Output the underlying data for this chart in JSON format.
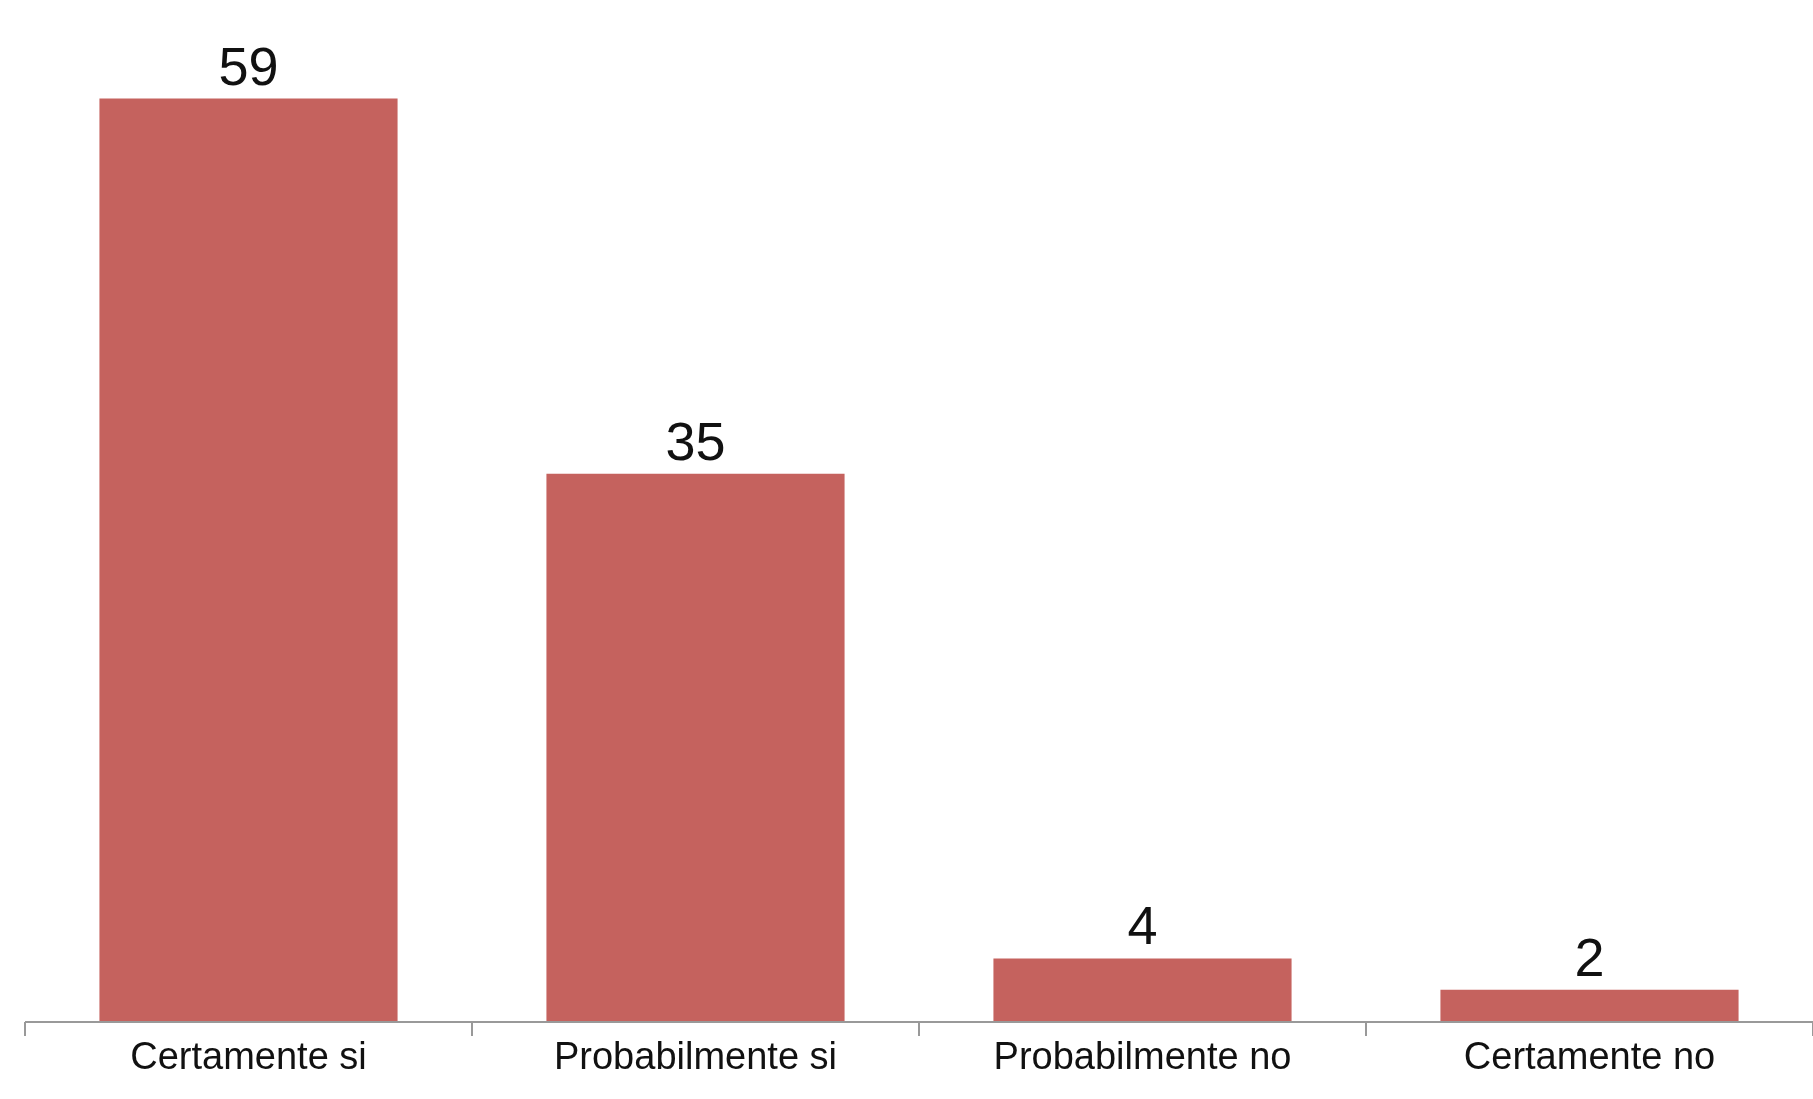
{
  "chart_data": {
    "type": "bar",
    "categories": [
      "Certamente si",
      "Probabilmente si",
      "Probabilmente no",
      "Certamente no"
    ],
    "values": [
      59,
      35,
      4,
      2
    ],
    "color": "#c5625e",
    "ylim": [
      0,
      65.3
    ],
    "data_labels": true,
    "grid": false,
    "legend": false,
    "tick_labels": "x"
  }
}
